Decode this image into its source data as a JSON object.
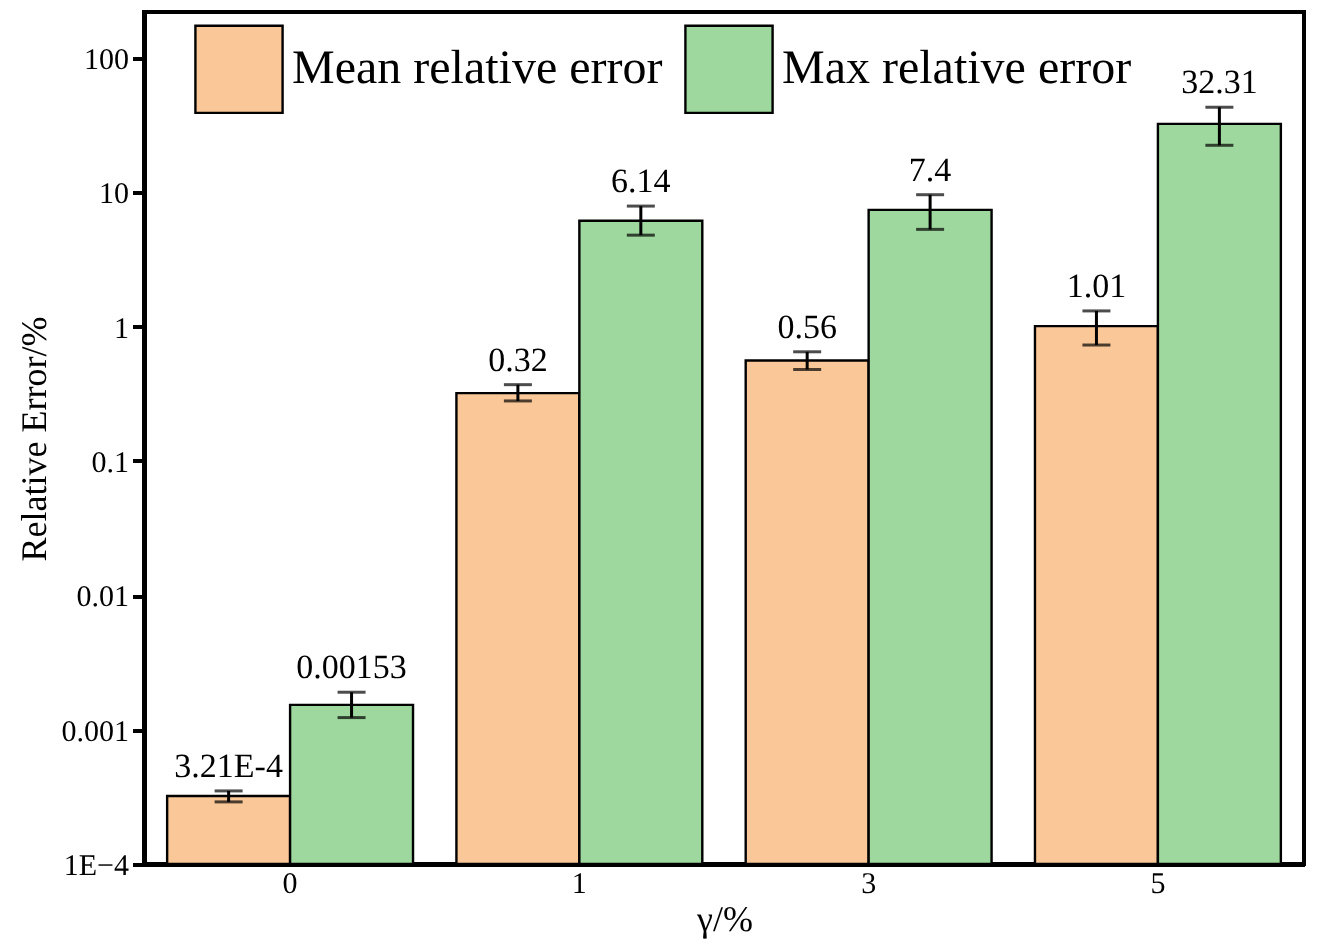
{
  "chart_data": {
    "type": "bar",
    "xlabel": "γ/%",
    "ylabel": "Relative Error/%",
    "categories": [
      "0",
      "1",
      "3",
      "5"
    ],
    "series": [
      {
        "name": "Mean relative error",
        "color": "#fac898",
        "values": [
          0.000321,
          0.32,
          0.56,
          1.01
        ],
        "errors": [
          [
            0.00029,
            0.00035
          ],
          [
            0.28,
            0.37
          ],
          [
            0.48,
            0.65
          ],
          [
            0.73,
            1.31
          ]
        ],
        "value_labels": [
          "3.21E-4",
          "0.32",
          "0.56",
          "1.01"
        ]
      },
      {
        "name": "Max relative error",
        "color": "#9ed89e",
        "values": [
          0.00153,
          6.14,
          7.4,
          32.31
        ],
        "errors": [
          [
            0.00123,
            0.0019
          ],
          [
            4.8,
            7.9
          ],
          [
            5.3,
            9.6
          ],
          [
            22.4,
            43
          ]
        ],
        "value_labels": [
          "0.00153",
          "6.14",
          "7.4",
          "32.31"
        ]
      }
    ],
    "log": true,
    "ylim": [
      0.0001,
      220
    ],
    "yticks": [
      {
        "value": 0.0001,
        "label": "1E−4"
      },
      0.001,
      0.01,
      0.1,
      1,
      10,
      100
    ],
    "legend": "top",
    "grid": false
  }
}
